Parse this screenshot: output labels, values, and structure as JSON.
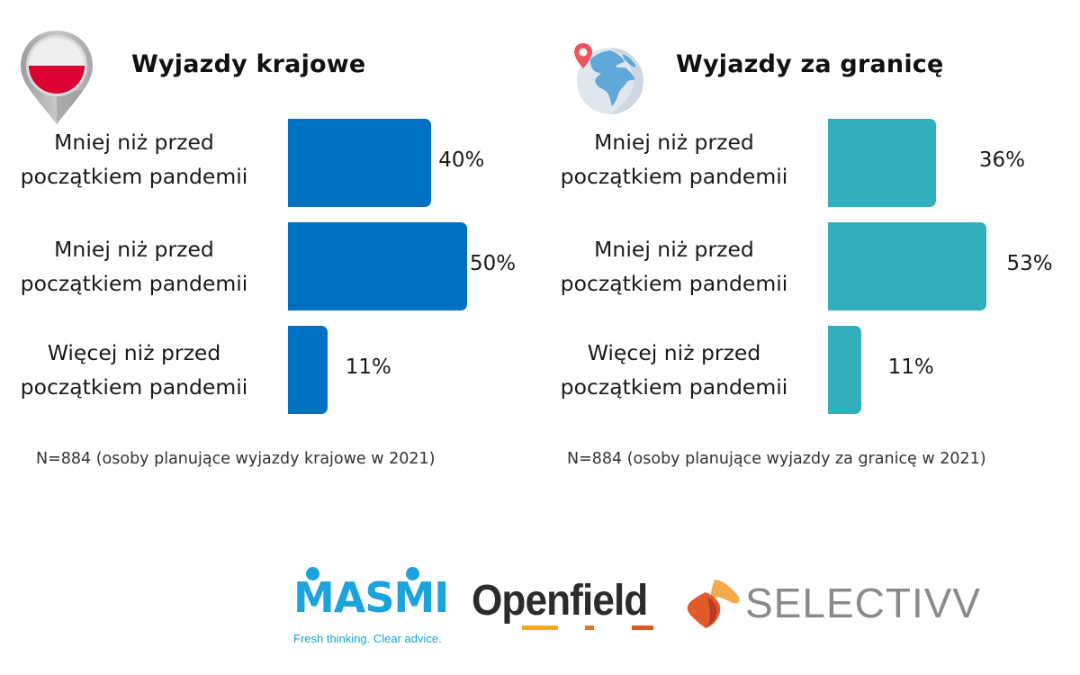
{
  "panels": [
    {
      "id": "domestic",
      "title": "Wyjazdy krajowe",
      "icon": "poland-flag-map-pin-icon",
      "bar_color": "#0070c0",
      "rows": [
        {
          "label_line1": "Mniej niż przed",
          "label_line2": "początkiem pandemii",
          "value": 40,
          "value_label": "40%"
        },
        {
          "label_line1": "Mniej niż przed",
          "label_line2": "początkiem pandemii",
          "value": 50,
          "value_label": "50%"
        },
        {
          "label_line1": "Więcej niż przed",
          "label_line2": "początkiem pandemii",
          "value": 11,
          "value_label": "11%"
        }
      ],
      "note": "N=884 (osoby planujące wyjazdy krajowe w 2021)"
    },
    {
      "id": "abroad",
      "title": "Wyjazdy za granicę",
      "icon": "globe-with-location-pin-icon",
      "bar_color": "#31afbc",
      "rows": [
        {
          "label_line1": "Mniej niż przed",
          "label_line2": "początkiem pandemii",
          "value": 36,
          "value_label": "36%"
        },
        {
          "label_line1": "Mniej niż przed",
          "label_line2": "początkiem pandemii",
          "value": 53,
          "value_label": "53%"
        },
        {
          "label_line1": "Więcej niż przed",
          "label_line2": "początkiem pandemii",
          "value": 11,
          "value_label": "11%"
        }
      ],
      "note": "N=884 (osoby planujące wyjazdy za granicę w 2021)"
    }
  ],
  "logos": {
    "masmi": {
      "name": "MASMI",
      "tagline": "Fresh thinking. Clear advice.",
      "color": "#1aa3dc"
    },
    "openfield": {
      "name": "Openfield",
      "color": "#2b2b2b",
      "accent_colors": [
        "#f5a623",
        "#e8742a",
        "#e05a1e"
      ]
    },
    "selectivv": {
      "name": "SELECTIVV",
      "color": "#8a8a8a",
      "accent_colors": [
        "#f7a94b",
        "#e2592a",
        "#b83a22"
      ]
    }
  },
  "chart_data": [
    {
      "type": "bar",
      "orientation": "horizontal",
      "title": "Wyjazdy krajowe",
      "categories": [
        "Mniej niż przed początkiem pandemii",
        "Mniej niż przed początkiem pandemii",
        "Więcej niż przed początkiem pandemii"
      ],
      "values": [
        40,
        50,
        11
      ],
      "unit": "%",
      "xlabel": "",
      "ylabel": "",
      "grid": false,
      "legend": "none",
      "note": "N=884 (osoby planujące wyjazdy krajowe w 2021)"
    },
    {
      "type": "bar",
      "orientation": "horizontal",
      "title": "Wyjazdy za granicę",
      "categories": [
        "Mniej niż przed początkiem pandemii",
        "Mniej niż przed początkiem pandemii",
        "Więcej niż przed początkiem pandemii"
      ],
      "values": [
        36,
        53,
        11
      ],
      "unit": "%",
      "xlabel": "",
      "ylabel": "",
      "grid": false,
      "legend": "none",
      "note": "N=884 (osoby planujące wyjazdy za granicę w 2021)"
    }
  ]
}
